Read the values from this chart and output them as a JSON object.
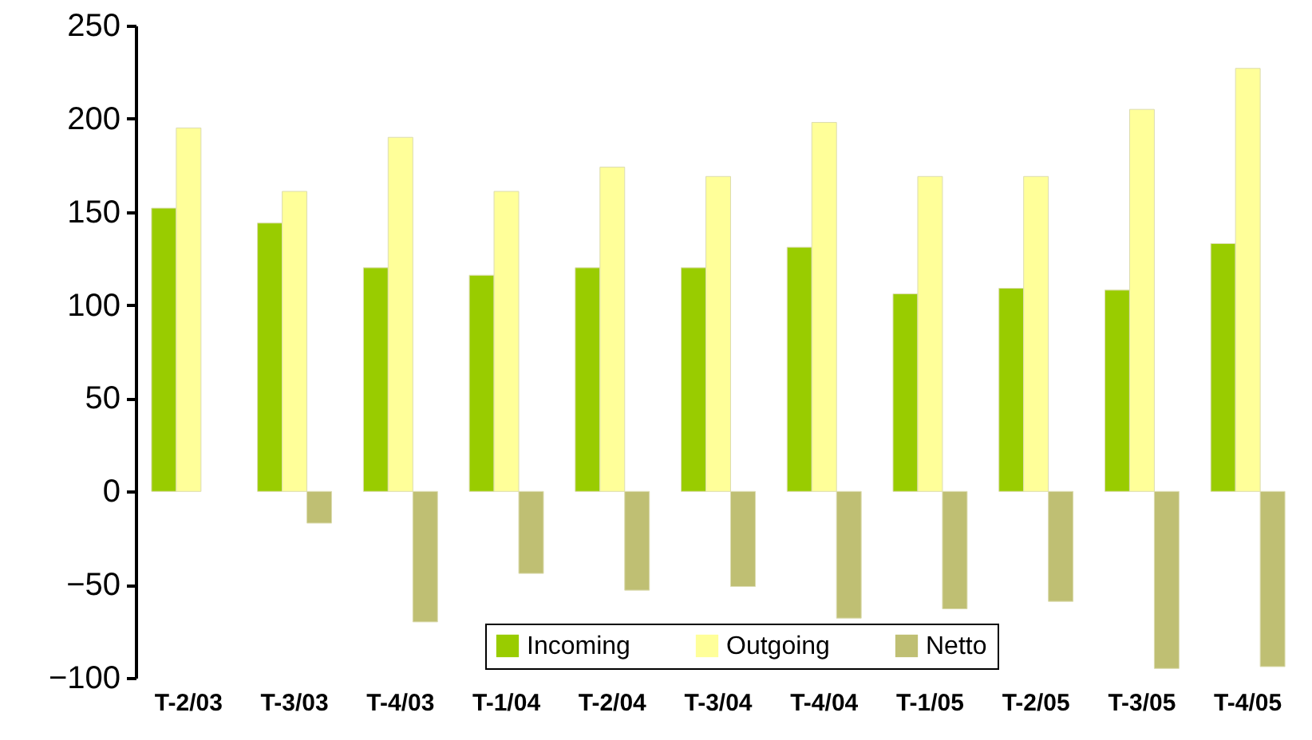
{
  "chart_data": {
    "type": "bar",
    "categories": [
      "T-2/03",
      "T-3/03",
      "T-4/03",
      "T-1/04",
      "T-2/04",
      "T-3/04",
      "T-4/04",
      "T-1/05",
      "T-2/05",
      "T-3/05",
      "T-4/05"
    ],
    "series": [
      {
        "name": "Incoming",
        "color": "#99cc00",
        "values": [
          152,
          144,
          120,
          116,
          120,
          120,
          131,
          106,
          109,
          108,
          133
        ]
      },
      {
        "name": "Outgoing",
        "color": "#ffff99",
        "values": [
          195,
          161,
          190,
          161,
          174,
          169,
          198,
          169,
          169,
          205,
          227
        ]
      },
      {
        "name": "Netto",
        "color": "#bfbf73",
        "values": [
          null,
          -17,
          -70,
          -44,
          -53,
          -51,
          -68,
          -63,
          -59,
          -95,
          -94
        ]
      }
    ],
    "ylim": [
      -100,
      250
    ],
    "yticks": [
      -100,
      -50,
      0,
      50,
      100,
      150,
      200,
      250
    ],
    "grid": false,
    "legend": "bottom"
  }
}
